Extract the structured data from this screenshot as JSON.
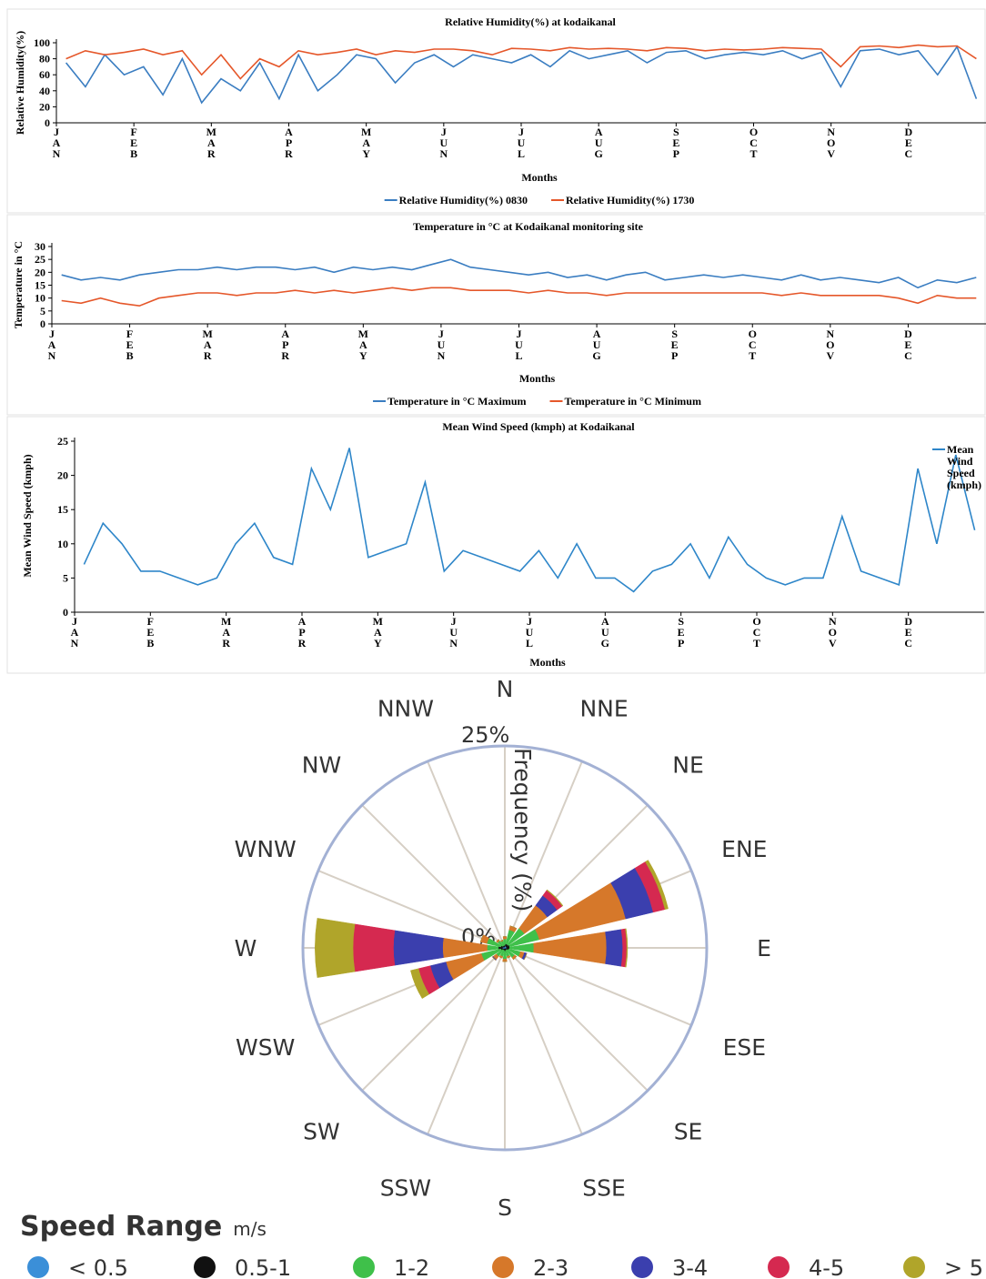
{
  "chart_data": [
    {
      "type": "line",
      "title": "Relative Humidity(%) at kodaikanal",
      "x_label": "Months",
      "y_label": "Relative Humidity(%)",
      "categories": [
        "JAN",
        null,
        null,
        null,
        "FEB",
        null,
        null,
        null,
        "MAR",
        null,
        null,
        null,
        "APR",
        null,
        null,
        null,
        "MAY",
        null,
        null,
        null,
        "JUN",
        null,
        null,
        null,
        "JUL",
        null,
        null,
        null,
        "AUG",
        null,
        null,
        null,
        "SEP",
        null,
        null,
        null,
        "OCT",
        null,
        null,
        null,
        "NOV",
        null,
        null,
        null,
        "DEC",
        null,
        null,
        null
      ],
      "series": [
        {
          "name": "Relative Humidity(%) 0830",
          "color": "#3a7dc1",
          "values": [
            75,
            45,
            85,
            60,
            70,
            35,
            80,
            25,
            55,
            40,
            75,
            30,
            85,
            40,
            60,
            85,
            80,
            50,
            75,
            85,
            70,
            85,
            80,
            75,
            85,
            70,
            90,
            80,
            85,
            90,
            75,
            88,
            90,
            80,
            85,
            88,
            85,
            90,
            80,
            88,
            45,
            90,
            92,
            85,
            90,
            60,
            95,
            30
          ]
        },
        {
          "name": "Relative Humidity(%) 1730",
          "color": "#e5572a",
          "values": [
            80,
            90,
            85,
            88,
            92,
            85,
            90,
            60,
            85,
            55,
            80,
            70,
            90,
            85,
            88,
            92,
            85,
            90,
            88,
            92,
            92,
            90,
            85,
            93,
            92,
            90,
            94,
            92,
            93,
            92,
            90,
            94,
            93,
            90,
            92,
            91,
            92,
            94,
            93,
            92,
            70,
            95,
            96,
            94,
            97,
            95,
            96,
            80
          ]
        }
      ],
      "ylim": [
        0,
        100
      ],
      "yticks": [
        0,
        20,
        40,
        60,
        80,
        100
      ],
      "legend": "bottom"
    },
    {
      "type": "line",
      "title": "Temperature in °C at Kodaikanal monitoring site",
      "x_label": "Months",
      "y_label": "Temperature in °C",
      "categories": [
        "JAN",
        null,
        null,
        null,
        "FEB",
        null,
        null,
        null,
        "MAR",
        null,
        null,
        null,
        "APR",
        null,
        null,
        null,
        "MAY",
        null,
        null,
        null,
        "JUN",
        null,
        null,
        null,
        "JUL",
        null,
        null,
        null,
        "AUG",
        null,
        null,
        null,
        "SEP",
        null,
        null,
        null,
        "OCT",
        null,
        null,
        null,
        "NOV",
        null,
        null,
        null,
        "DEC",
        null,
        null,
        null
      ],
      "series": [
        {
          "name": "Temperature in °C Maximum",
          "color": "#3a7dc1",
          "values": [
            19,
            17,
            18,
            17,
            19,
            20,
            21,
            21,
            22,
            21,
            22,
            22,
            21,
            22,
            20,
            22,
            21,
            22,
            21,
            23,
            25,
            22,
            21,
            20,
            19,
            20,
            18,
            19,
            17,
            19,
            20,
            17,
            18,
            19,
            18,
            19,
            18,
            17,
            19,
            17,
            18,
            17,
            16,
            18,
            14,
            17,
            16,
            18
          ]
        },
        {
          "name": "Temperature in °C Minimum",
          "color": "#e5572a",
          "values": [
            9,
            8,
            10,
            8,
            7,
            10,
            11,
            12,
            12,
            11,
            12,
            12,
            13,
            12,
            13,
            12,
            13,
            14,
            13,
            14,
            14,
            13,
            13,
            13,
            12,
            13,
            12,
            12,
            11,
            12,
            12,
            12,
            12,
            12,
            12,
            12,
            12,
            11,
            12,
            11,
            11,
            11,
            11,
            10,
            8,
            11,
            10,
            10
          ]
        }
      ],
      "ylim": [
        0,
        30
      ],
      "yticks": [
        0,
        5,
        10,
        15,
        20,
        25,
        30
      ],
      "legend": "bottom"
    },
    {
      "type": "line",
      "title": "Mean Wind Speed (kmph) at Kodaikanal",
      "x_label": "Months",
      "y_label": "Mean Wind Speed (kmph)",
      "categories": [
        "JAN",
        null,
        null,
        null,
        "FEB",
        null,
        null,
        null,
        "MAR",
        null,
        null,
        null,
        "APR",
        null,
        null,
        null,
        "MAY",
        null,
        null,
        null,
        "JUN",
        null,
        null,
        null,
        "JUL",
        null,
        null,
        null,
        "AUG",
        null,
        null,
        null,
        "SEP",
        null,
        null,
        null,
        "OCT",
        null,
        null,
        null,
        "NOV",
        null,
        null,
        null,
        "DEC",
        null,
        null,
        null
      ],
      "series": [
        {
          "name": "Mean Wind Speed (kmph)",
          "color": "#2e86c9",
          "values": [
            7,
            13,
            10,
            6,
            6,
            5,
            4,
            5,
            10,
            13,
            8,
            7,
            21,
            15,
            24,
            8,
            9,
            10,
            19,
            6,
            9,
            8,
            7,
            6,
            9,
            5,
            10,
            5,
            5,
            3,
            6,
            7,
            10,
            5,
            11,
            7,
            5,
            4,
            5,
            5,
            14,
            6,
            5,
            4,
            21,
            10,
            23,
            12
          ]
        }
      ],
      "ylim": [
        0,
        25
      ],
      "yticks": [
        0,
        5,
        10,
        15,
        20,
        25
      ],
      "legend": "right"
    },
    {
      "type": "wind_rose",
      "r_label": "Frequency (%)",
      "legend_title": "Speed Range",
      "legend_unit": "m/s",
      "categories": [
        "N",
        "NNE",
        "NE",
        "ENE",
        "E",
        "ESE",
        "SE",
        "SSE",
        "S",
        "SSW",
        "SW",
        "WSW",
        "W",
        "WNW",
        "NW",
        "NNW"
      ],
      "rlim": [
        0,
        25
      ],
      "rticks": [
        {
          "value": 0,
          "label": "0%"
        },
        {
          "value": 25,
          "label": "25%"
        }
      ],
      "series": [
        {
          "name": "< 0.5",
          "color": "#3b8fd8",
          "values": [
            0.1,
            0.2,
            0.2,
            0.2,
            0.2,
            0.2,
            0.1,
            0.1,
            0.1,
            0.1,
            0.1,
            0.2,
            0.3,
            0.2,
            0.1,
            0.1
          ]
        },
        {
          "name": "0.5-1",
          "color": "#111111",
          "values": [
            0.2,
            0.3,
            0.3,
            0.4,
            0.4,
            0.3,
            0.2,
            0.2,
            0.3,
            0.2,
            0.2,
            0.3,
            0.5,
            0.3,
            0.2,
            0.2
          ]
        },
        {
          "name": "1-2",
          "color": "#3fc04a",
          "values": [
            0.8,
            1.8,
            2.5,
            3.8,
            3,
            1.5,
            1.2,
            0.8,
            1,
            0.8,
            1,
            2.5,
            1.4,
            1.8,
            0.8,
            0.6
          ]
        },
        {
          "name": "2-3",
          "color": "#d6782a",
          "values": [
            0.3,
            0.5,
            3.5,
            11,
            9,
            0.5,
            0.3,
            0.2,
            0.3,
            0.2,
            0.5,
            4.5,
            5.5,
            0.8,
            0.2,
            0.1
          ]
        },
        {
          "name": "3-4",
          "color": "#3b3fae",
          "values": [
            0,
            0,
            1.5,
            3.5,
            2,
            0.3,
            0,
            0,
            0,
            0,
            0.1,
            2,
            6.1,
            0,
            0,
            0
          ]
        },
        {
          "name": "4-5",
          "color": "#d52950",
          "values": [
            0,
            0,
            0.8,
            1.5,
            0.5,
            0,
            0,
            0,
            0,
            0,
            0,
            1.5,
            5,
            0,
            0,
            0
          ]
        },
        {
          "name": "> 5",
          "color": "#b0a52a",
          "values": [
            0,
            0,
            0.1,
            0.4,
            0.1,
            0,
            0,
            0,
            0,
            0,
            0,
            1,
            4.7,
            0,
            0,
            0
          ]
        }
      ]
    }
  ]
}
